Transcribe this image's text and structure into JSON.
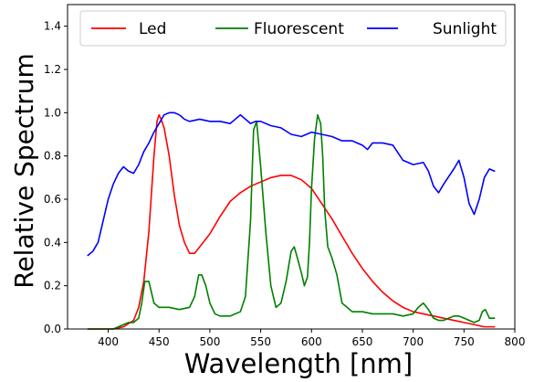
{
  "chart_data": {
    "type": "line",
    "title": "",
    "xlabel": "Wavelength [nm]",
    "ylabel": "Relative Spectrum",
    "xlim": [
      360,
      800
    ],
    "ylim": [
      0,
      1.5
    ],
    "xticks": [
      400,
      450,
      500,
      550,
      600,
      650,
      700,
      750,
      800
    ],
    "xtick_labels": [
      "400",
      "450",
      "500",
      "550",
      "600",
      "650",
      "700",
      "750",
      "800"
    ],
    "yticks": [
      0.0,
      0.2,
      0.4,
      0.6,
      0.8,
      1.0,
      1.2,
      1.4
    ],
    "ytick_labels": [
      "0.0",
      "0.2",
      "0.4",
      "0.6",
      "0.8",
      "1.0",
      "1.2",
      "1.4"
    ],
    "grid": false,
    "legend": {
      "placement": "top",
      "entries": [
        "Led",
        "Fluorescent",
        "Sunlight"
      ]
    },
    "series": [
      {
        "name": "Led",
        "color": "#ff0000",
        "x": [
          380,
          395,
          405,
          415,
          425,
          430,
          435,
          440,
          445,
          448,
          450,
          452,
          455,
          460,
          465,
          470,
          475,
          480,
          485,
          490,
          500,
          510,
          520,
          530,
          540,
          550,
          560,
          570,
          580,
          590,
          600,
          610,
          620,
          630,
          640,
          650,
          660,
          670,
          680,
          690,
          700,
          710,
          720,
          730,
          740,
          750,
          760,
          770,
          780
        ],
        "y": [
          0.0,
          0.0,
          0.0,
          0.01,
          0.04,
          0.1,
          0.22,
          0.45,
          0.8,
          0.96,
          0.99,
          0.97,
          0.93,
          0.8,
          0.62,
          0.48,
          0.4,
          0.35,
          0.35,
          0.38,
          0.44,
          0.52,
          0.59,
          0.63,
          0.66,
          0.68,
          0.7,
          0.71,
          0.71,
          0.69,
          0.65,
          0.58,
          0.51,
          0.43,
          0.35,
          0.28,
          0.22,
          0.17,
          0.13,
          0.1,
          0.08,
          0.07,
          0.06,
          0.05,
          0.04,
          0.03,
          0.02,
          0.01,
          0.01
        ]
      },
      {
        "name": "Fluorescent",
        "color": "#008000",
        "x": [
          380,
          395,
          405,
          410,
          415,
          420,
          425,
          430,
          433,
          436,
          440,
          445,
          450,
          460,
          470,
          480,
          485,
          489,
          492,
          496,
          500,
          505,
          510,
          520,
          530,
          535,
          540,
          543,
          546,
          550,
          555,
          560,
          565,
          570,
          575,
          580,
          583,
          586,
          590,
          593,
          596,
          598,
          600,
          603,
          606,
          609,
          611,
          613,
          616,
          620,
          625,
          630,
          640,
          650,
          660,
          670,
          680,
          690,
          700,
          705,
          710,
          715,
          720,
          725,
          730,
          735,
          740,
          745,
          750,
          755,
          760,
          765,
          768,
          771,
          775,
          780
        ],
        "y": [
          0.0,
          0.0,
          0.0,
          0.01,
          0.02,
          0.03,
          0.03,
          0.05,
          0.12,
          0.22,
          0.22,
          0.12,
          0.1,
          0.1,
          0.09,
          0.1,
          0.15,
          0.25,
          0.25,
          0.2,
          0.12,
          0.07,
          0.06,
          0.06,
          0.08,
          0.15,
          0.5,
          0.92,
          0.96,
          0.75,
          0.45,
          0.2,
          0.1,
          0.12,
          0.22,
          0.36,
          0.38,
          0.33,
          0.26,
          0.2,
          0.24,
          0.4,
          0.65,
          0.88,
          0.99,
          0.95,
          0.8,
          0.55,
          0.38,
          0.33,
          0.25,
          0.12,
          0.08,
          0.08,
          0.07,
          0.07,
          0.07,
          0.06,
          0.07,
          0.1,
          0.12,
          0.09,
          0.05,
          0.04,
          0.04,
          0.05,
          0.06,
          0.06,
          0.05,
          0.04,
          0.03,
          0.04,
          0.08,
          0.09,
          0.05,
          0.05
        ]
      },
      {
        "name": "Sunlight",
        "color": "#0000ff",
        "x": [
          380,
          385,
          390,
          395,
          400,
          405,
          410,
          415,
          420,
          425,
          430,
          435,
          440,
          445,
          450,
          455,
          460,
          465,
          470,
          475,
          480,
          490,
          500,
          510,
          520,
          530,
          540,
          545,
          550,
          560,
          570,
          580,
          590,
          600,
          610,
          620,
          630,
          640,
          650,
          655,
          660,
          670,
          680,
          690,
          700,
          710,
          715,
          720,
          725,
          730,
          740,
          745,
          750,
          755,
          760,
          765,
          770,
          775,
          780
        ],
        "y": [
          0.34,
          0.36,
          0.4,
          0.5,
          0.6,
          0.67,
          0.72,
          0.75,
          0.73,
          0.72,
          0.76,
          0.82,
          0.86,
          0.91,
          0.95,
          0.99,
          1.0,
          1.0,
          0.99,
          0.97,
          0.96,
          0.97,
          0.96,
          0.96,
          0.95,
          0.99,
          0.95,
          0.96,
          0.96,
          0.94,
          0.93,
          0.9,
          0.89,
          0.91,
          0.9,
          0.89,
          0.87,
          0.87,
          0.85,
          0.83,
          0.86,
          0.86,
          0.85,
          0.78,
          0.76,
          0.77,
          0.73,
          0.66,
          0.63,
          0.67,
          0.74,
          0.78,
          0.7,
          0.58,
          0.53,
          0.6,
          0.7,
          0.74,
          0.73
        ]
      }
    ]
  }
}
